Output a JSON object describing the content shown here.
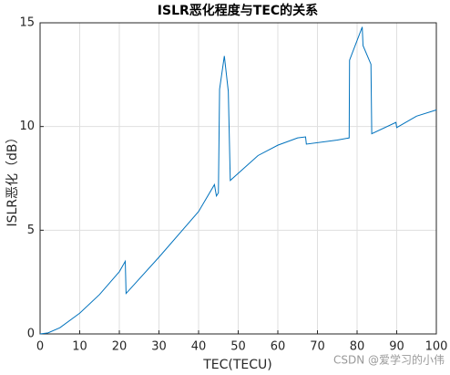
{
  "chart_data": {
    "type": "line",
    "title": "ISLR恶化程度与TEC的关系",
    "x_label": "TEC(TECU)",
    "y_label": "ISLR恶化（dB）",
    "x": [
      0,
      2,
      5,
      10,
      15,
      20,
      21.5,
      21.7,
      30,
      40,
      44,
      44.5,
      45,
      45.3,
      46.5,
      47.5,
      48,
      55,
      60,
      65,
      67,
      67.2,
      75,
      78,
      78.1,
      81.3,
      81.5,
      83.5,
      83.7,
      89.8,
      90,
      95,
      100
    ],
    "series": [
      {
        "name": "ISLR",
        "color": "#0072bd",
        "values": [
          0,
          0.05,
          0.3,
          1.0,
          1.9,
          3.0,
          3.5,
          1.95,
          3.7,
          5.9,
          7.2,
          6.65,
          6.8,
          11.8,
          13.4,
          11.7,
          7.4,
          8.6,
          9.1,
          9.45,
          9.5,
          9.15,
          9.35,
          9.45,
          13.2,
          14.8,
          13.9,
          13.0,
          9.65,
          10.2,
          9.95,
          10.5,
          10.8
        ]
      }
    ],
    "xlim": [
      0,
      100
    ],
    "xticks": [
      0,
      10,
      20,
      30,
      40,
      50,
      60,
      70,
      80,
      90,
      100
    ],
    "ylim": [
      0,
      15
    ],
    "yticks": [
      0,
      5,
      10,
      15
    ],
    "grid": true,
    "watermark": "CSDN @爱学习的小伟"
  }
}
